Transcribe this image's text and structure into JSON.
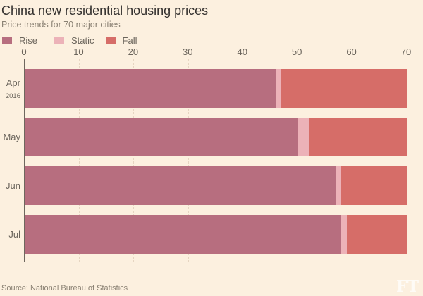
{
  "chart_data": {
    "type": "bar",
    "orientation": "horizontal",
    "stacked": true,
    "title": "China new residential housing prices",
    "subtitle": "Price trends for 70 major cities",
    "categories": [
      {
        "main": "Apr",
        "sub": "2016"
      },
      {
        "main": "May",
        "sub": ""
      },
      {
        "main": "Jun",
        "sub": ""
      },
      {
        "main": "Jul",
        "sub": ""
      }
    ],
    "series": [
      {
        "name": "Rise",
        "color": "#b76e7f",
        "values": [
          46,
          50,
          57,
          58
        ]
      },
      {
        "name": "Static",
        "color": "#ecb2b8",
        "values": [
          1,
          2,
          1,
          1
        ]
      },
      {
        "name": "Fall",
        "color": "#d66d68",
        "values": [
          23,
          18,
          12,
          11
        ]
      }
    ],
    "x_ticks": [
      0,
      10,
      20,
      30,
      40,
      50,
      60,
      70
    ],
    "xlim": [
      0,
      70
    ],
    "legend_position": "top-left",
    "grid": "dashed-vertical"
  },
  "footer": {
    "source": "Source: National Bureau of Statistics",
    "logo": "FT"
  },
  "colors": {
    "background": "#fcf0df",
    "title_text": "#33302e",
    "muted_text": "#8a8173",
    "label_text": "#6b655c",
    "axis_line": "#6e675e",
    "gridline": "#e6d5c1",
    "logo_text": "rgba(255,255,255,0.7)"
  }
}
